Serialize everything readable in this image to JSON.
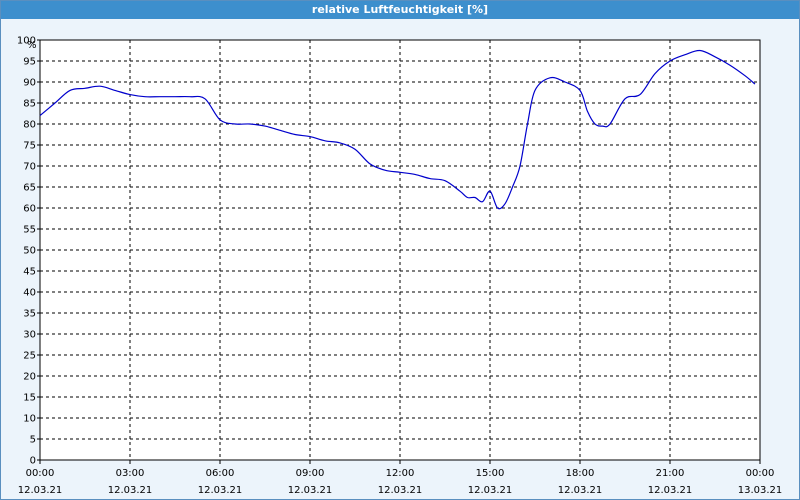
{
  "window": {
    "title": "relative Luftfeuchtigkeit [%]"
  },
  "colors": {
    "line": "#0000cc",
    "grid": "#000000",
    "plot_bg": "#ffffff",
    "title_bg": "#3d8fcd"
  },
  "chart_data": {
    "type": "line",
    "title": "relative Luftfeuchtigkeit [%]",
    "ylabel": "%",
    "ylim": [
      0,
      100
    ],
    "y_ticks": [
      0,
      5,
      10,
      15,
      20,
      25,
      30,
      35,
      40,
      45,
      50,
      55,
      60,
      65,
      70,
      75,
      80,
      85,
      90,
      95,
      100
    ],
    "x_ticks": [
      {
        "time": "00:00",
        "date": "12.03.21"
      },
      {
        "time": "03:00",
        "date": "12.03.21"
      },
      {
        "time": "06:00",
        "date": "12.03.21"
      },
      {
        "time": "09:00",
        "date": "12.03.21"
      },
      {
        "time": "12:00",
        "date": "12.03.21"
      },
      {
        "time": "15:00",
        "date": "12.03.21"
      },
      {
        "time": "18:00",
        "date": "12.03.21"
      },
      {
        "time": "21:00",
        "date": "12.03.21"
      },
      {
        "time": "00:00",
        "date": "13.03.21"
      }
    ],
    "grid": true,
    "series": [
      {
        "x": [
          "00:00",
          "00:30",
          "01:00",
          "01:30",
          "02:00",
          "02:30",
          "03:00",
          "03:30",
          "04:00",
          "04:30",
          "05:00",
          "05:30",
          "06:00",
          "06:30",
          "07:00",
          "07:30",
          "08:00",
          "08:30",
          "09:00",
          "09:30",
          "10:00",
          "10:30",
          "11:00",
          "11:30",
          "12:00",
          "12:30",
          "13:00",
          "13:30",
          "14:00",
          "14:15",
          "14:30",
          "14:45",
          "15:00",
          "15:15",
          "15:30",
          "15:45",
          "16:00",
          "16:15",
          "16:30",
          "17:00",
          "17:30",
          "18:00",
          "18:15",
          "18:30",
          "18:45",
          "19:00",
          "19:30",
          "20:00",
          "20:30",
          "21:00",
          "21:30",
          "22:00",
          "22:30",
          "23:00",
          "23:30",
          "23:50"
        ],
        "values": [
          82,
          85,
          88,
          88.5,
          89,
          88,
          87,
          86.5,
          86.5,
          86.5,
          86.5,
          86,
          81,
          80,
          80,
          79.5,
          78.5,
          77.5,
          77,
          76,
          75.5,
          74,
          70.5,
          69,
          68.5,
          68,
          67,
          66.5,
          64,
          62.5,
          62.5,
          61.5,
          64,
          60,
          61,
          65,
          70,
          80,
          88,
          91,
          90,
          88,
          83,
          80,
          79.5,
          80,
          86,
          87,
          92,
          95,
          96.5,
          97.5,
          96,
          94,
          91.5,
          89.5
        ]
      }
    ]
  }
}
